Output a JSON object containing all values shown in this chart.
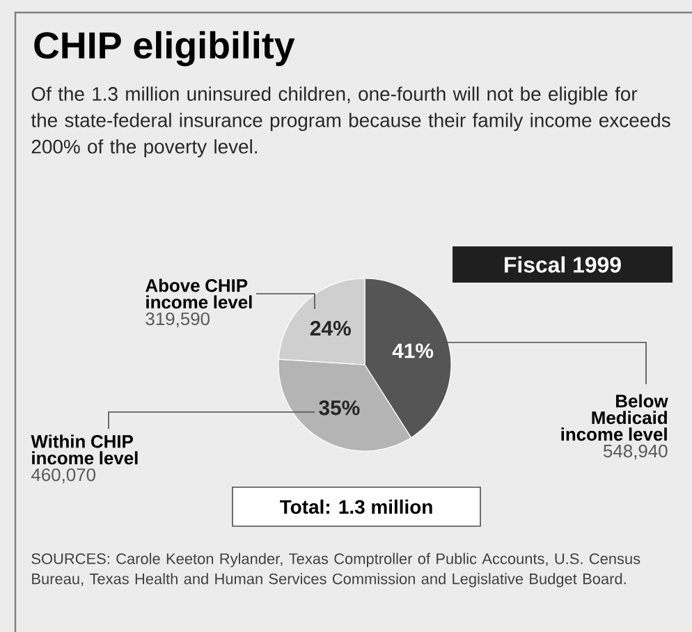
{
  "chart_data": {
    "type": "pie",
    "title": "CHIP eligibility",
    "subtitle": "Of the 1.3 million uninsured children, one-fourth will not be eligible for the state-federal insurance program because their family income exceeds 200% of the poverty level.",
    "categories": [
      "Below Medicaid income level",
      "Within CHIP income level",
      "Above CHIP income level"
    ],
    "values": [
      41,
      35,
      24
    ],
    "value_labels": [
      "41%",
      "35%",
      "24%"
    ],
    "colors": [
      "#555555",
      "#b4b4b4",
      "#cfcfcf"
    ],
    "annotations": [
      "Fiscal 1999",
      "Total: 1.3 million",
      "SOURCES: Carole Keeton Rylander, Texas Comptroller of Public Accounts, U.S. Census Bureau, Texas Health and Human Services Commission and Legislative Budget Board.",
      "548,940",
      "460,070",
      "319,590"
    ]
  }
}
